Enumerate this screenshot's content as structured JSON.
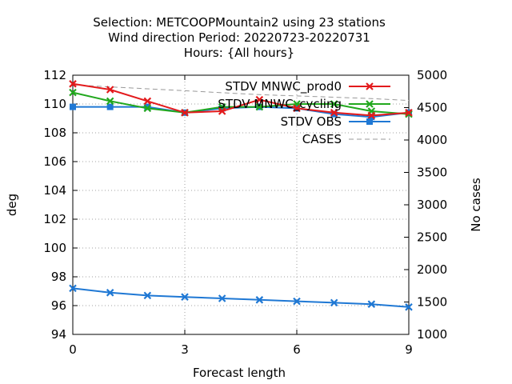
{
  "chart_data": {
    "type": "line",
    "title_lines": [
      "Selection: METCOOPMountain2 using    23 stations",
      "Wind direction   Period: 20220723-20220731",
      "Hours: {All hours}"
    ],
    "xlabel": "Forecast length",
    "ylabel": "deg",
    "y2label": "No cases",
    "xlim": [
      0,
      9
    ],
    "ylim": [
      94,
      112
    ],
    "y2lim": [
      1000,
      5000
    ],
    "xticks": [
      "0",
      "3",
      "6",
      "9"
    ],
    "yticks": [
      "94",
      "96",
      "98",
      "100",
      "102",
      "104",
      "106",
      "108",
      "110",
      "112"
    ],
    "y2ticks": [
      "1000",
      "1500",
      "2000",
      "2500",
      "3000",
      "3500",
      "4000",
      "4500",
      "5000"
    ],
    "grid": true,
    "legend_position": "top-right",
    "x": [
      0,
      1,
      2,
      3,
      4,
      5,
      6,
      7,
      8,
      9
    ],
    "series": [
      {
        "name": "STDV MNWC_prod0",
        "color": "#e31a1c",
        "marker": "x",
        "axis": "left",
        "values": [
          111.4,
          111.0,
          110.2,
          109.4,
          109.5,
          110.3,
          109.7,
          109.4,
          109.2,
          109.4
        ]
      },
      {
        "name": "STDV MNWC_cycling",
        "color": "#22a81e",
        "marker": "x",
        "axis": "left",
        "values": [
          110.8,
          110.2,
          109.7,
          109.4,
          109.8,
          109.8,
          110.0,
          110.0,
          109.5,
          109.3
        ]
      },
      {
        "name": "STDV OBS",
        "color": "#1f78d4",
        "marker": "square",
        "axis": "left",
        "values": [
          109.8,
          109.8,
          109.8,
          109.4,
          109.7,
          109.8,
          109.7,
          109.3,
          109.1,
          109.4
        ]
      },
      {
        "name": "CASES",
        "color": "#999999",
        "marker": "none",
        "dash": true,
        "axis": "right",
        "values": [
          4850,
          4820,
          4790,
          4760,
          4730,
          4700,
          4680,
          4660,
          4640,
          4610
        ]
      },
      {
        "name": "",
        "color": "#1f78d4",
        "marker": "x",
        "axis": "left",
        "values": [
          97.2,
          96.9,
          96.7,
          96.6,
          96.5,
          96.4,
          96.3,
          96.2,
          96.1,
          95.9
        ]
      }
    ]
  }
}
